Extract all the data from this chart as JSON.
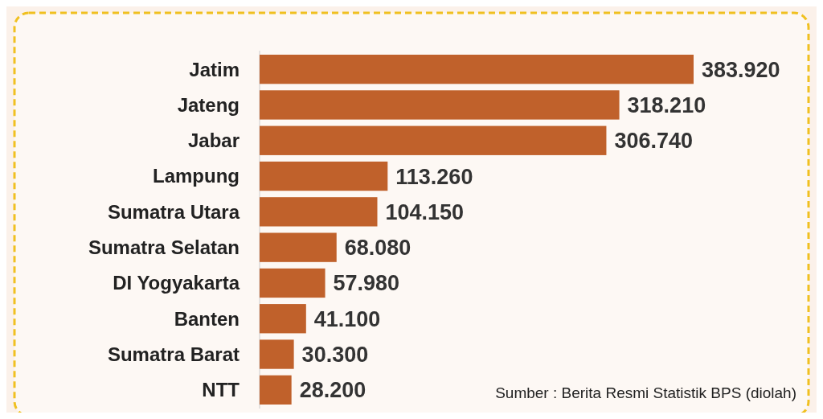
{
  "chart_data": {
    "type": "bar",
    "orientation": "horizontal",
    "categories": [
      "Jatim",
      "Jateng",
      "Jabar",
      "Lampung",
      "Sumatra Utara",
      "Sumatra Selatan",
      "DI Yogyakarta",
      "Banten",
      "Sumatra Barat",
      "NTT"
    ],
    "values": [
      383920,
      318210,
      306740,
      113260,
      104150,
      68080,
      57980,
      41100,
      30300,
      28200
    ],
    "value_labels": [
      "383.920",
      "318.210",
      "306.740",
      "113.260",
      "104.150",
      "68.080",
      "57.980",
      "41.100",
      "30.300",
      "28.200"
    ],
    "color": "#c0612b",
    "annotations": [
      "Sumber : Berita Resmi Statistik BPS (diolah)"
    ]
  }
}
